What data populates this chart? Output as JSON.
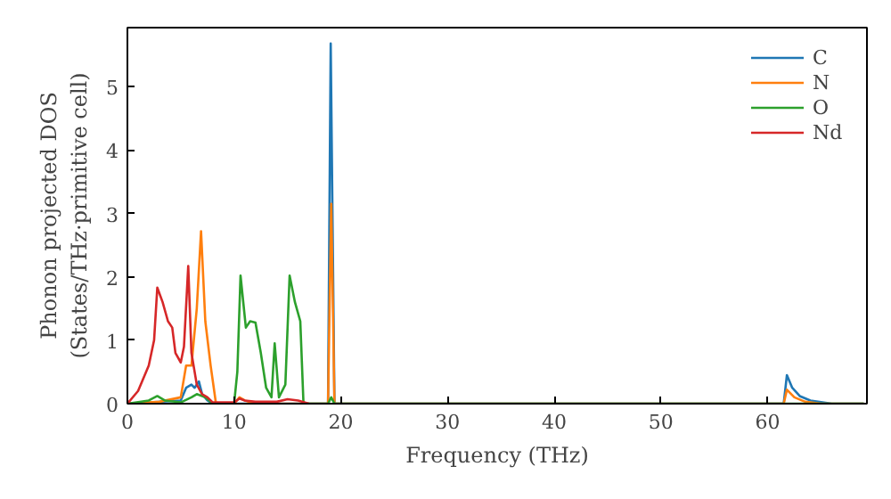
{
  "chart_data": {
    "type": "line",
    "xlabel": "Frequency (THz)",
    "ylabel": "Phonon projected DOS\n(States/THz·primitive cell)",
    "xlim": [
      0,
      69.3
    ],
    "ylim": [
      0,
      5.93
    ],
    "xticks": [
      0,
      10,
      20,
      30,
      40,
      50,
      60
    ],
    "yticks": [
      0,
      1,
      2,
      3,
      4,
      5
    ],
    "grid": false,
    "legend": "top right",
    "series": [
      {
        "name": "C",
        "color": "#1f77b4",
        "x": [
          0,
          5,
          5.5,
          6,
          6.3,
          6.7,
          7,
          7.5,
          8,
          18.8,
          19.05,
          19.4,
          61.5,
          61.8,
          62.3,
          63,
          64,
          66,
          69
        ],
        "values": [
          0,
          0.05,
          0.25,
          0.3,
          0.25,
          0.35,
          0.15,
          0.05,
          0,
          0,
          5.68,
          0,
          0,
          0.45,
          0.25,
          0.12,
          0.05,
          0,
          0
        ]
      },
      {
        "name": "N",
        "color": "#ff7f0e",
        "x": [
          0,
          3,
          5,
          5.5,
          6,
          6.5,
          6.9,
          7.3,
          7.8,
          8.3,
          10,
          10.5,
          11,
          12,
          18.8,
          19.1,
          19.4,
          61.5,
          61.8,
          62.5,
          63.5,
          65,
          69
        ],
        "values": [
          0,
          0.03,
          0.1,
          0.6,
          0.6,
          1.5,
          2.72,
          1.3,
          0.6,
          0,
          0,
          0.1,
          0.05,
          0,
          0,
          3.15,
          0,
          0,
          0.22,
          0.1,
          0.03,
          0,
          0
        ]
      },
      {
        "name": "O",
        "color": "#2ca02c",
        "x": [
          0,
          2,
          2.8,
          3.5,
          5,
          6,
          6.5,
          7.3,
          8,
          10,
          10.3,
          10.6,
          11.1,
          11.5,
          12,
          12.5,
          13,
          13.5,
          13.8,
          14.2,
          14.8,
          15.2,
          15.7,
          16.2,
          16.5,
          18.8,
          19.1,
          19.4,
          69
        ],
        "values": [
          0,
          0.05,
          0.12,
          0.05,
          0.02,
          0.1,
          0.15,
          0.1,
          0,
          0,
          0.5,
          2.02,
          1.2,
          1.3,
          1.28,
          0.8,
          0.25,
          0.1,
          0.95,
          0.1,
          0.3,
          2.02,
          1.6,
          1.3,
          0,
          0,
          0.1,
          0,
          0
        ]
      },
      {
        "name": "Nd",
        "color": "#d62728",
        "x": [
          0,
          1,
          2,
          2.5,
          2.8,
          3.3,
          3.8,
          4.2,
          4.5,
          5,
          5.3,
          5.7,
          6,
          6.5,
          7,
          7.5,
          8,
          10,
          10.5,
          11,
          12,
          14,
          15,
          16,
          17
        ],
        "values": [
          0,
          0.2,
          0.6,
          1.0,
          1.83,
          1.6,
          1.3,
          1.2,
          0.8,
          0.65,
          0.9,
          2.17,
          0.8,
          0.3,
          0.15,
          0.1,
          0.02,
          0.02,
          0.08,
          0.05,
          0.03,
          0.03,
          0.07,
          0.05,
          0
        ]
      }
    ]
  }
}
